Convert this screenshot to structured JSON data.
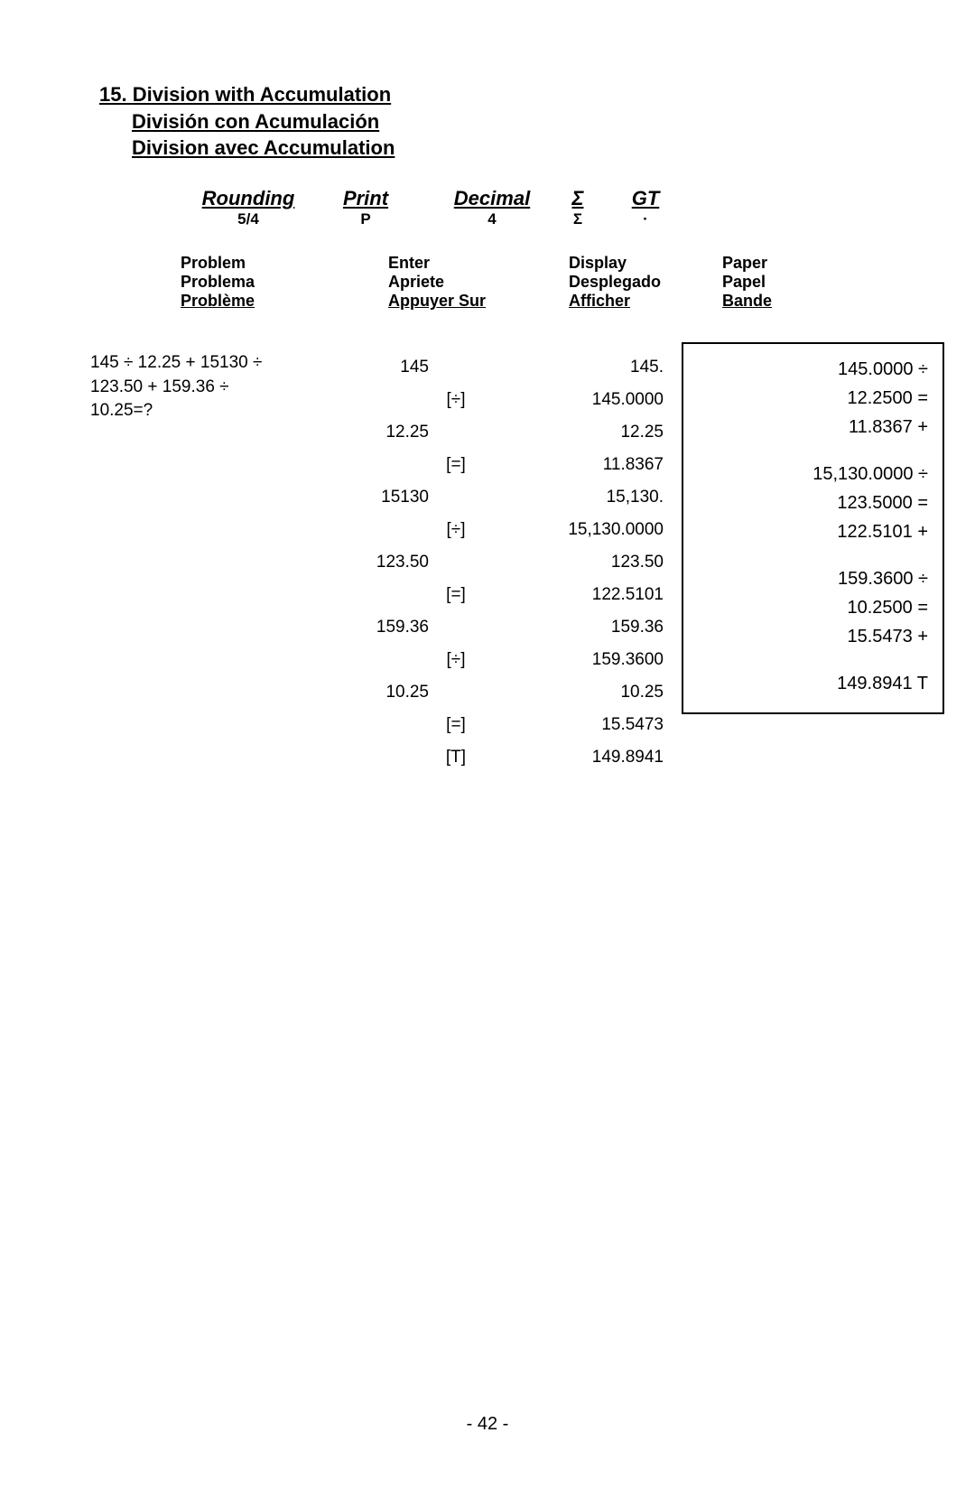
{
  "title": {
    "number": "15.",
    "en": "Division with Accumulation",
    "es": "División con Acumulación",
    "fr": "Division avec Accumulation"
  },
  "settings": {
    "labels": {
      "rounding": "Rounding",
      "print": "Print",
      "decimal": "Decimal",
      "sigma": "Σ",
      "gt": "GT"
    },
    "values": {
      "rounding": "5/4",
      "print": "P",
      "decimal": "4",
      "sigma": "Σ",
      "gt": "·"
    }
  },
  "headers": {
    "problem": {
      "en": "Problem",
      "es": "Problema",
      "fr": "Problème"
    },
    "enter": {
      "en": "Enter",
      "es": "Apriete",
      "fr": "Appuyer Sur"
    },
    "display": {
      "en": "Display",
      "es": "Desplegado",
      "fr": "Afficher"
    },
    "paper": {
      "en": "Paper",
      "es": "Papel",
      "fr": "Bande"
    }
  },
  "problem": {
    "line1": "145 ÷ 12.25 + 15130 ÷",
    "line2": "123.50 + 159.36 ÷",
    "line3": "10.25=?"
  },
  "rows": [
    {
      "enter": "145",
      "key": "",
      "display": "145."
    },
    {
      "enter": "",
      "key": "[÷]",
      "display": "145.0000"
    },
    {
      "enter": "12.25",
      "key": "",
      "display": "12.25"
    },
    {
      "enter": "",
      "key": "[=]",
      "display": "11.8367"
    },
    {
      "enter": "15130",
      "key": "",
      "display": "15,130."
    },
    {
      "enter": "",
      "key": "[÷]",
      "display": "15,130.0000"
    },
    {
      "enter": "123.50",
      "key": "",
      "display": "123.50"
    },
    {
      "enter": "",
      "key": "[=]",
      "display": "122.5101"
    },
    {
      "enter": "159.36",
      "key": "",
      "display": "159.36"
    },
    {
      "enter": "",
      "key": "[÷]",
      "display": "159.3600"
    },
    {
      "enter": "10.25",
      "key": "",
      "display": "10.25"
    },
    {
      "enter": "",
      "key": "[=]",
      "display": "15.5473"
    },
    {
      "enter": "",
      "key": "[T]",
      "display": "149.8941"
    }
  ],
  "paper": [
    "145.0000 ÷",
    "12.2500 =",
    "11.8367 +",
    "",
    "15,130.0000 ÷",
    "123.5000 =",
    "122.5101 +",
    "",
    "159.3600 ÷",
    "10.2500 =",
    "15.5473 +",
    "",
    "149.8941 T"
  ],
  "page_number": "- 42 -"
}
